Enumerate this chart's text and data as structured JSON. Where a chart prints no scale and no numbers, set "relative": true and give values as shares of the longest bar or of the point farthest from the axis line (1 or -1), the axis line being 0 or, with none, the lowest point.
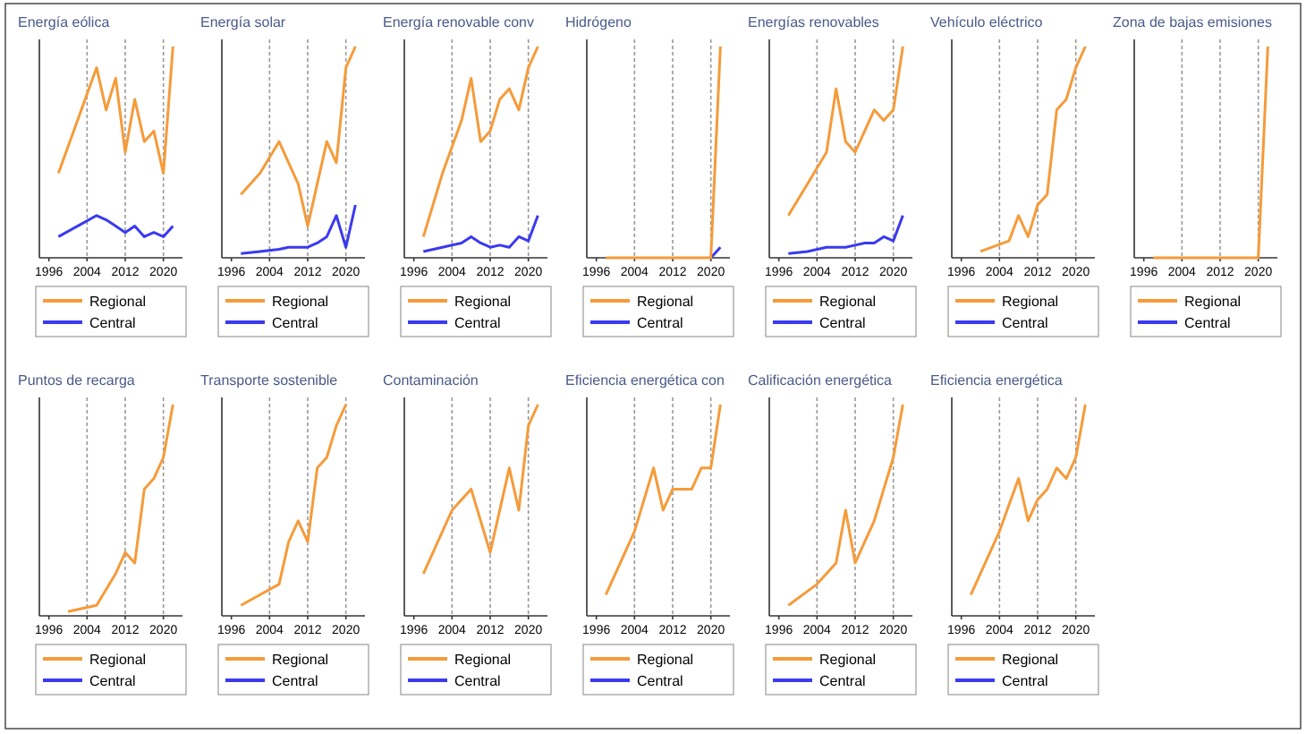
{
  "chart_data": [
    {
      "type": "line",
      "title": "Energía eólica",
      "relative": true,
      "x": [
        1998,
        2002,
        2006,
        2008,
        2010,
        2012,
        2014,
        2016,
        2018,
        2020,
        2022
      ],
      "xlim": [
        1994,
        2024
      ],
      "xticks": [
        1996,
        2004,
        2012,
        2020
      ],
      "ref_lines": [
        {
          "axis": "x",
          "value": 2004,
          "line_style": "dashed"
        },
        {
          "axis": "x",
          "value": 2012,
          "line_style": "dashed"
        },
        {
          "axis": "x",
          "value": 2020,
          "line_style": "dashed"
        }
      ],
      "legend": "bottom",
      "series": [
        {
          "name": "Regional",
          "color": "#f59b3a",
          "values": [
            0.4,
            0.65,
            0.9,
            0.7,
            0.85,
            0.5,
            0.75,
            0.55,
            0.6,
            0.4,
            1.0
          ]
        },
        {
          "name": "Central",
          "color": "#3a3af0",
          "values": [
            0.1,
            0.15,
            0.2,
            0.18,
            0.15,
            0.12,
            0.15,
            0.1,
            0.12,
            0.1,
            0.15
          ]
        }
      ]
    },
    {
      "type": "line",
      "title": "Energía solar",
      "relative": true,
      "x": [
        1998,
        2002,
        2006,
        2008,
        2010,
        2012,
        2014,
        2016,
        2018,
        2020,
        2022
      ],
      "xlim": [
        1994,
        2024
      ],
      "xticks": [
        1996,
        2004,
        2012,
        2020
      ],
      "ref_lines": [
        {
          "axis": "x",
          "value": 2004,
          "line_style": "dashed"
        },
        {
          "axis": "x",
          "value": 2012,
          "line_style": "dashed"
        },
        {
          "axis": "x",
          "value": 2020,
          "line_style": "dashed"
        }
      ],
      "legend": "bottom",
      "series": [
        {
          "name": "Regional",
          "color": "#f59b3a",
          "values": [
            0.3,
            0.4,
            0.55,
            0.45,
            0.35,
            0.15,
            0.35,
            0.55,
            0.45,
            0.9,
            1.0
          ]
        },
        {
          "name": "Central",
          "color": "#3a3af0",
          "values": [
            0.02,
            0.03,
            0.04,
            0.05,
            0.05,
            0.05,
            0.07,
            0.1,
            0.2,
            0.05,
            0.25
          ]
        }
      ]
    },
    {
      "type": "line",
      "title": "Energía renovable conv",
      "relative": true,
      "x": [
        1998,
        2002,
        2006,
        2008,
        2010,
        2012,
        2014,
        2016,
        2018,
        2020,
        2022
      ],
      "xlim": [
        1994,
        2024
      ],
      "xticks": [
        1996,
        2004,
        2012,
        2020
      ],
      "ref_lines": [
        {
          "axis": "x",
          "value": 2004,
          "line_style": "dashed"
        },
        {
          "axis": "x",
          "value": 2012,
          "line_style": "dashed"
        },
        {
          "axis": "x",
          "value": 2020,
          "line_style": "dashed"
        }
      ],
      "legend": "bottom",
      "series": [
        {
          "name": "Regional",
          "color": "#f59b3a",
          "values": [
            0.1,
            0.4,
            0.65,
            0.85,
            0.55,
            0.6,
            0.75,
            0.8,
            0.7,
            0.9,
            1.0
          ]
        },
        {
          "name": "Central",
          "color": "#3a3af0",
          "values": [
            0.03,
            0.05,
            0.07,
            0.1,
            0.07,
            0.05,
            0.06,
            0.05,
            0.1,
            0.08,
            0.2
          ]
        }
      ]
    },
    {
      "type": "line",
      "title": "Hidrógeno",
      "relative": true,
      "x": [
        1998,
        2002,
        2006,
        2008,
        2010,
        2012,
        2014,
        2016,
        2018,
        2020,
        2022
      ],
      "xlim": [
        1994,
        2024
      ],
      "xticks": [
        1996,
        2004,
        2012,
        2020
      ],
      "ref_lines": [
        {
          "axis": "x",
          "value": 2004,
          "line_style": "dashed"
        },
        {
          "axis": "x",
          "value": 2012,
          "line_style": "dashed"
        },
        {
          "axis": "x",
          "value": 2020,
          "line_style": "dashed"
        }
      ],
      "legend": "bottom",
      "series": [
        {
          "name": "Regional",
          "color": "#f59b3a",
          "values": [
            0,
            0,
            0,
            0,
            0,
            0,
            0,
            0,
            0,
            0,
            1.0
          ]
        },
        {
          "name": "Central",
          "color": "#3a3af0",
          "values": [
            null,
            null,
            null,
            null,
            null,
            null,
            null,
            null,
            null,
            0,
            0.05
          ]
        }
      ]
    },
    {
      "type": "line",
      "title": "Energías renovables",
      "relative": true,
      "x": [
        1998,
        2002,
        2006,
        2008,
        2010,
        2012,
        2014,
        2016,
        2018,
        2020,
        2022
      ],
      "xlim": [
        1994,
        2024
      ],
      "xticks": [
        1996,
        2004,
        2012,
        2020
      ],
      "ref_lines": [
        {
          "axis": "x",
          "value": 2004,
          "line_style": "dashed"
        },
        {
          "axis": "x",
          "value": 2012,
          "line_style": "dashed"
        },
        {
          "axis": "x",
          "value": 2020,
          "line_style": "dashed"
        }
      ],
      "legend": "bottom",
      "series": [
        {
          "name": "Regional",
          "color": "#f59b3a",
          "values": [
            0.2,
            0.35,
            0.5,
            0.8,
            0.55,
            0.5,
            0.6,
            0.7,
            0.65,
            0.7,
            1.0
          ]
        },
        {
          "name": "Central",
          "color": "#3a3af0",
          "values": [
            0.02,
            0.03,
            0.05,
            0.05,
            0.05,
            0.06,
            0.07,
            0.07,
            0.1,
            0.08,
            0.2
          ]
        }
      ]
    },
    {
      "type": "line",
      "title": "Vehículo eléctrico",
      "relative": true,
      "x": [
        2000,
        2006,
        2008,
        2010,
        2012,
        2014,
        2016,
        2018,
        2020,
        2022
      ],
      "xlim": [
        1994,
        2024
      ],
      "xticks": [
        1996,
        2004,
        2012,
        2020
      ],
      "ref_lines": [
        {
          "axis": "x",
          "value": 2004,
          "line_style": "dashed"
        },
        {
          "axis": "x",
          "value": 2012,
          "line_style": "dashed"
        },
        {
          "axis": "x",
          "value": 2020,
          "line_style": "dashed"
        }
      ],
      "legend": "bottom",
      "series": [
        {
          "name": "Regional",
          "color": "#f59b3a",
          "values": [
            0.03,
            0.08,
            0.2,
            0.1,
            0.25,
            0.3,
            0.7,
            0.75,
            0.9,
            1.0
          ]
        },
        {
          "name": "Central",
          "color": "#3a3af0",
          "values": [
            null,
            null,
            null,
            null,
            null,
            null,
            null,
            null,
            null,
            null
          ]
        }
      ]
    },
    {
      "type": "line",
      "title": "Zona de bajas emisiones",
      "relative": true,
      "x": [
        1998,
        2002,
        2006,
        2010,
        2014,
        2018,
        2020,
        2022
      ],
      "xlim": [
        1994,
        2024
      ],
      "xticks": [
        1996,
        2004,
        2012,
        2020
      ],
      "ref_lines": [
        {
          "axis": "x",
          "value": 2004,
          "line_style": "dashed"
        },
        {
          "axis": "x",
          "value": 2012,
          "line_style": "dashed"
        },
        {
          "axis": "x",
          "value": 2020,
          "line_style": "dashed"
        }
      ],
      "legend": "bottom",
      "series": [
        {
          "name": "Regional",
          "color": "#f59b3a",
          "values": [
            0,
            0,
            0,
            0,
            0,
            0,
            0,
            1.0
          ]
        },
        {
          "name": "Central",
          "color": "#3a3af0",
          "values": [
            null,
            null,
            null,
            null,
            null,
            null,
            null,
            null
          ]
        }
      ]
    },
    {
      "type": "line",
      "title": "Puntos de recarga",
      "relative": true,
      "x": [
        2000,
        2006,
        2010,
        2012,
        2014,
        2016,
        2018,
        2020,
        2022
      ],
      "xlim": [
        1994,
        2024
      ],
      "xticks": [
        1996,
        2004,
        2012,
        2020
      ],
      "ref_lines": [
        {
          "axis": "x",
          "value": 2004,
          "line_style": "dashed"
        },
        {
          "axis": "x",
          "value": 2012,
          "line_style": "dashed"
        },
        {
          "axis": "x",
          "value": 2020,
          "line_style": "dashed"
        }
      ],
      "legend": "bottom",
      "series": [
        {
          "name": "Regional",
          "color": "#f59b3a",
          "values": [
            0.02,
            0.05,
            0.2,
            0.3,
            0.25,
            0.6,
            0.65,
            0.75,
            1.0
          ]
        },
        {
          "name": "Central",
          "color": "#3a3af0",
          "values": [
            null,
            null,
            null,
            null,
            null,
            null,
            null,
            null,
            null
          ]
        }
      ]
    },
    {
      "type": "line",
      "title": "Transporte sostenible",
      "relative": true,
      "x": [
        1998,
        2006,
        2008,
        2010,
        2012,
        2014,
        2016,
        2018,
        2020
      ],
      "xlim": [
        1994,
        2024
      ],
      "xticks": [
        1996,
        2004,
        2012,
        2020
      ],
      "ref_lines": [
        {
          "axis": "x",
          "value": 2004,
          "line_style": "dashed"
        },
        {
          "axis": "x",
          "value": 2012,
          "line_style": "dashed"
        },
        {
          "axis": "x",
          "value": 2020,
          "line_style": "dashed"
        }
      ],
      "legend": "bottom",
      "series": [
        {
          "name": "Regional",
          "color": "#f59b3a",
          "values": [
            0.05,
            0.15,
            0.35,
            0.45,
            0.35,
            0.7,
            0.75,
            0.9,
            1.0
          ]
        },
        {
          "name": "Central",
          "color": "#3a3af0",
          "values": [
            null,
            null,
            null,
            null,
            null,
            null,
            null,
            null,
            null
          ]
        }
      ]
    },
    {
      "type": "line",
      "title": "Contaminación",
      "relative": true,
      "x": [
        1998,
        2004,
        2008,
        2012,
        2016,
        2018,
        2020,
        2022
      ],
      "xlim": [
        1994,
        2024
      ],
      "xticks": [
        1996,
        2004,
        2012,
        2020
      ],
      "ref_lines": [
        {
          "axis": "x",
          "value": 2004,
          "line_style": "dashed"
        },
        {
          "axis": "x",
          "value": 2012,
          "line_style": "dashed"
        },
        {
          "axis": "x",
          "value": 2020,
          "line_style": "dashed"
        }
      ],
      "legend": "bottom",
      "series": [
        {
          "name": "Regional",
          "color": "#f59b3a",
          "values": [
            0.2,
            0.5,
            0.6,
            0.3,
            0.7,
            0.5,
            0.9,
            1.0
          ]
        },
        {
          "name": "Central",
          "color": "#3a3af0",
          "values": [
            null,
            null,
            null,
            null,
            null,
            null,
            null,
            null
          ]
        }
      ]
    },
    {
      "type": "line",
      "title": "Eficiencia energética con",
      "relative": true,
      "x": [
        1998,
        2004,
        2008,
        2010,
        2012,
        2016,
        2018,
        2020,
        2022
      ],
      "xlim": [
        1994,
        2024
      ],
      "xticks": [
        1996,
        2004,
        2012,
        2020
      ],
      "ref_lines": [
        {
          "axis": "x",
          "value": 2004,
          "line_style": "dashed"
        },
        {
          "axis": "x",
          "value": 2012,
          "line_style": "dashed"
        },
        {
          "axis": "x",
          "value": 2020,
          "line_style": "dashed"
        }
      ],
      "legend": "bottom",
      "series": [
        {
          "name": "Regional",
          "color": "#f59b3a",
          "values": [
            0.1,
            0.4,
            0.7,
            0.5,
            0.6,
            0.6,
            0.7,
            0.7,
            1.0
          ]
        },
        {
          "name": "Central",
          "color": "#3a3af0",
          "values": [
            null,
            null,
            null,
            null,
            null,
            null,
            null,
            null,
            null
          ]
        }
      ]
    },
    {
      "type": "line",
      "title": "Calificación energética",
      "relative": true,
      "x": [
        1998,
        2004,
        2008,
        2010,
        2012,
        2014,
        2016,
        2018,
        2020,
        2022
      ],
      "xlim": [
        1994,
        2024
      ],
      "xticks": [
        1996,
        2004,
        2012,
        2020
      ],
      "ref_lines": [
        {
          "axis": "x",
          "value": 2004,
          "line_style": "dashed"
        },
        {
          "axis": "x",
          "value": 2012,
          "line_style": "dashed"
        },
        {
          "axis": "x",
          "value": 2020,
          "line_style": "dashed"
        }
      ],
      "legend": "bottom",
      "series": [
        {
          "name": "Regional",
          "color": "#f59b3a",
          "values": [
            0.05,
            0.15,
            0.25,
            0.5,
            0.25,
            0.35,
            0.45,
            0.6,
            0.75,
            1.0
          ]
        },
        {
          "name": "Central",
          "color": "#3a3af0",
          "values": [
            null,
            null,
            null,
            null,
            null,
            null,
            null,
            null,
            null,
            null
          ]
        }
      ]
    },
    {
      "type": "line",
      "title": "Eficiencia energética",
      "relative": true,
      "x": [
        1998,
        2004,
        2008,
        2010,
        2012,
        2014,
        2016,
        2018,
        2020,
        2022
      ],
      "xlim": [
        1994,
        2024
      ],
      "xticks": [
        1996,
        2004,
        2012,
        2020
      ],
      "ref_lines": [
        {
          "axis": "x",
          "value": 2004,
          "line_style": "dashed"
        },
        {
          "axis": "x",
          "value": 2012,
          "line_style": "dashed"
        },
        {
          "axis": "x",
          "value": 2020,
          "line_style": "dashed"
        }
      ],
      "legend": "bottom",
      "series": [
        {
          "name": "Regional",
          "color": "#f59b3a",
          "values": [
            0.1,
            0.4,
            0.65,
            0.45,
            0.55,
            0.6,
            0.7,
            0.65,
            0.75,
            1.0
          ]
        },
        {
          "name": "Central",
          "color": "#3a3af0",
          "values": [
            null,
            null,
            null,
            null,
            null,
            null,
            null,
            null,
            null,
            null
          ]
        }
      ]
    }
  ]
}
